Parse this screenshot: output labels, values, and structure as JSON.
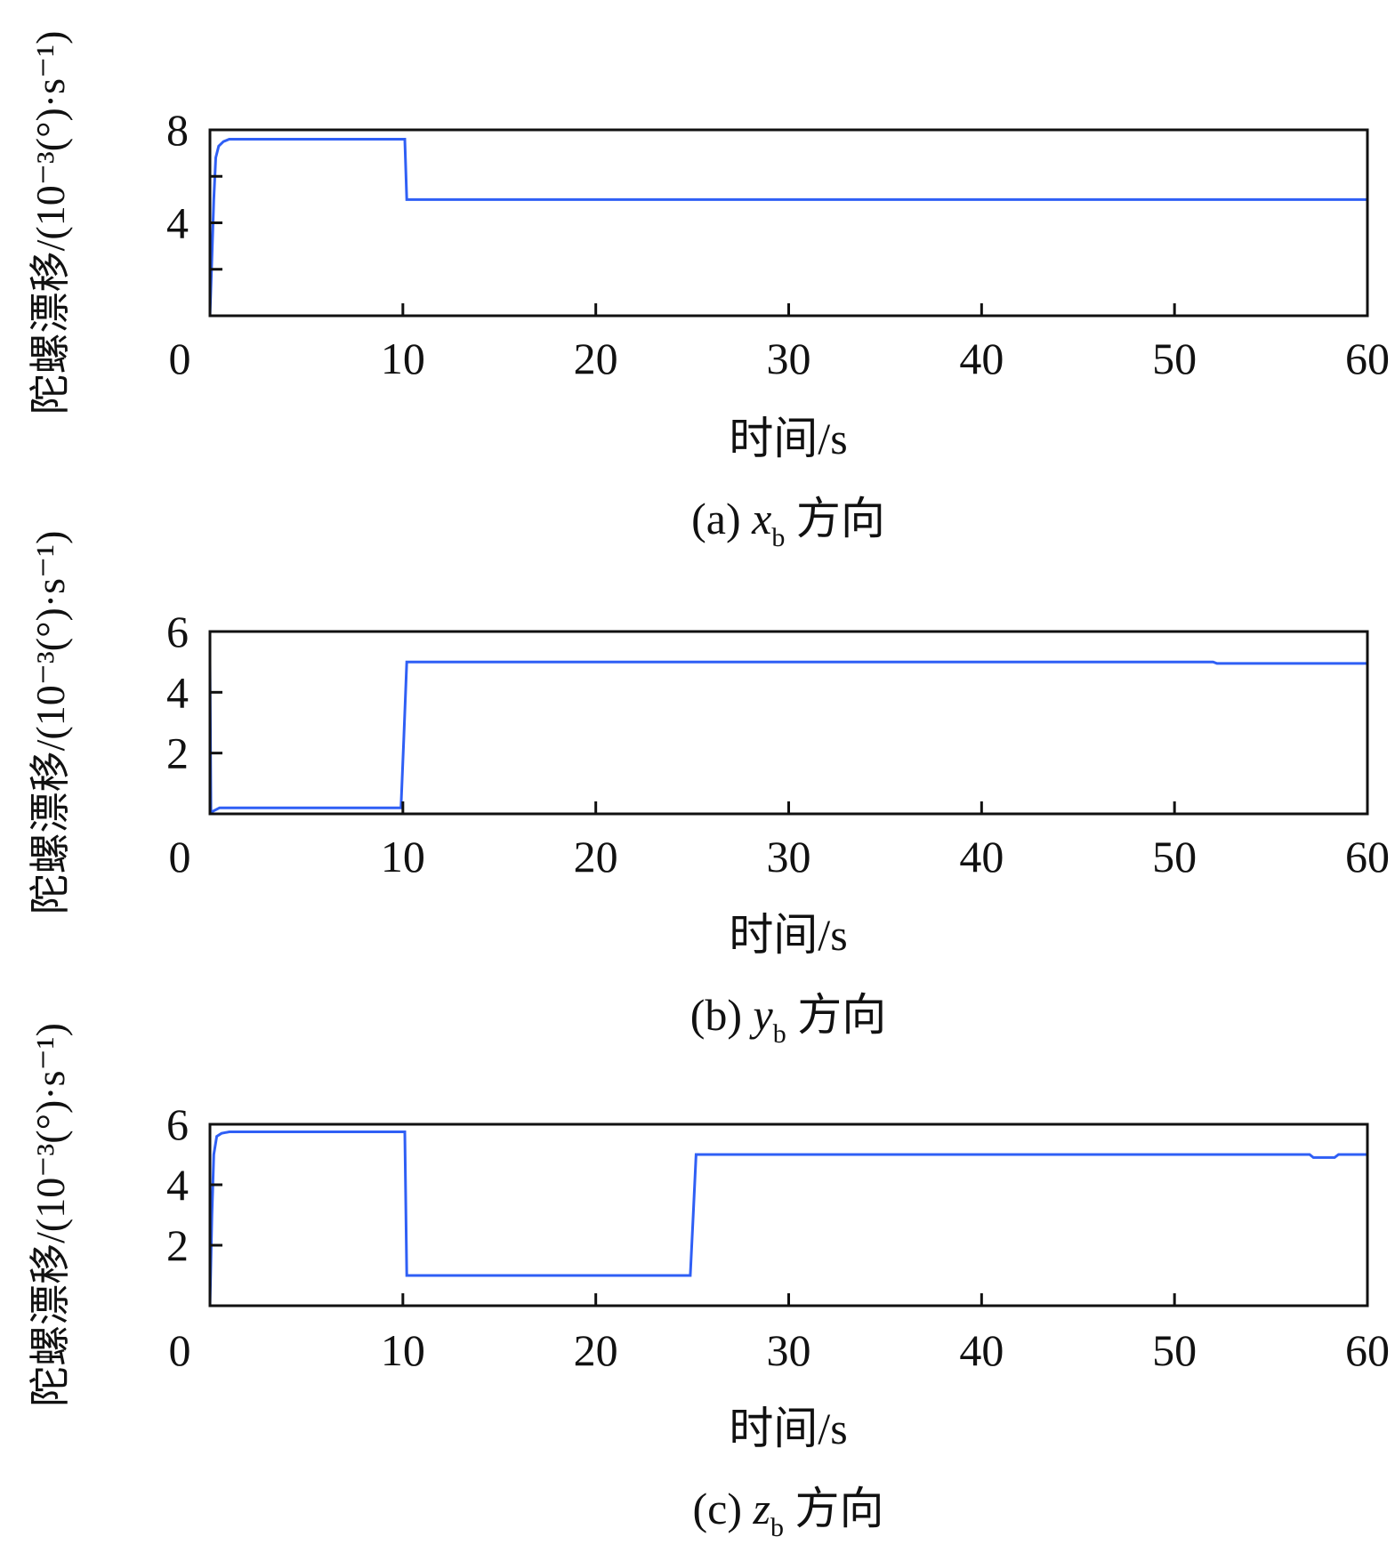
{
  "colors": {
    "line": "#2f5ff5",
    "axis": "#111111",
    "text": "#111111",
    "background": "#ffffff"
  },
  "chart_data": [
    {
      "type": "line",
      "xlabel": "时间/s",
      "ylabel": "陀螺漂移/(10⁻³(°)·s⁻¹)",
      "caption": {
        "prefix": "(a) ",
        "var": "x",
        "sub": "b",
        "suffix": " 方向"
      },
      "xlim": [
        0,
        60
      ],
      "ylim": [
        0,
        8
      ],
      "xticks": [
        0,
        10,
        20,
        30,
        40,
        50,
        60
      ],
      "yticks": [
        2,
        4,
        6,
        8
      ],
      "ytick_labels": [
        "",
        "4",
        "",
        "8"
      ],
      "series": [
        {
          "x": [
            0,
            0.1,
            0.2,
            0.3,
            0.45,
            0.7,
            1.0,
            9.95,
            10.1,
            10.2,
            60
          ],
          "y": [
            0,
            2.5,
            5.0,
            6.8,
            7.3,
            7.5,
            7.6,
            7.6,
            7.6,
            5.0,
            5.0
          ]
        }
      ]
    },
    {
      "type": "line",
      "xlabel": "时间/s",
      "ylabel": "陀螺漂移/(10⁻³(°)·s⁻¹)",
      "caption": {
        "prefix": "(b) ",
        "var": "y",
        "sub": "b",
        "suffix": " 方向"
      },
      "xlim": [
        0,
        60
      ],
      "ylim": [
        0,
        6
      ],
      "xticks": [
        0,
        10,
        20,
        30,
        40,
        50,
        60
      ],
      "yticks": [
        2,
        4,
        6
      ],
      "ytick_labels": [
        "2",
        "4",
        "6"
      ],
      "series": [
        {
          "x": [
            0,
            0.05,
            0.2,
            0.5,
            1.0,
            9.9,
            10.05,
            10.2,
            52,
            52.2,
            60
          ],
          "y": [
            5.0,
            0.05,
            0.1,
            0.2,
            0.2,
            0.2,
            2.5,
            5.0,
            5.0,
            4.95,
            4.95
          ]
        }
      ]
    },
    {
      "type": "line",
      "xlabel": "时间/s",
      "ylabel": "陀螺漂移/(10⁻³(°)·s⁻¹)",
      "caption": {
        "prefix": "(c) ",
        "var": "z",
        "sub": "b",
        "suffix": " 方向"
      },
      "xlim": [
        0,
        60
      ],
      "ylim": [
        0,
        6
      ],
      "xticks": [
        0,
        10,
        20,
        30,
        40,
        50,
        60
      ],
      "yticks": [
        2,
        4,
        6
      ],
      "ytick_labels": [
        "2",
        "4",
        "6"
      ],
      "series": [
        {
          "x": [
            0,
            0.1,
            0.2,
            0.35,
            0.6,
            1.0,
            9.95,
            10.1,
            10.2,
            24.9,
            25.05,
            25.2,
            57.0,
            57.2,
            58.3,
            58.5,
            60
          ],
          "y": [
            0,
            3.0,
            5.0,
            5.6,
            5.7,
            5.75,
            5.75,
            5.75,
            1.0,
            1.0,
            3.0,
            5.0,
            5.0,
            4.9,
            4.9,
            5.0,
            5.0
          ]
        }
      ]
    }
  ]
}
